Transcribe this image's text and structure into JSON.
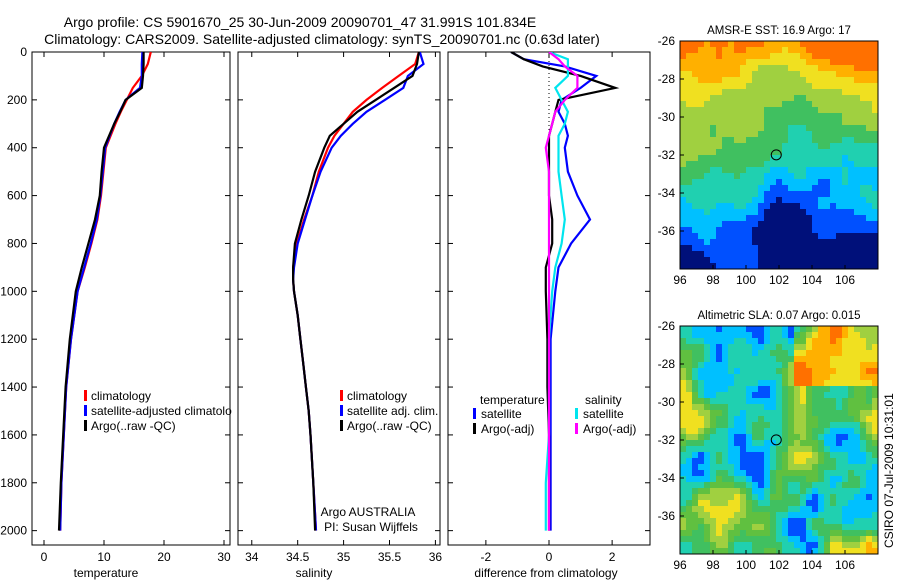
{
  "title": {
    "line1": "Argo profile: CS 5901670_25 30-Jun-2009 20090701_47 31.991S 101.834E",
    "line2": "Climatology: CARS2009. Satellite-adjusted climatology: synTS_20090701.nc (0.63d later)"
  },
  "side_label": "CSIRO 07-Jul-2009 10:31:01",
  "annotations": {
    "line1": "Argo AUSTRALIA",
    "line2": "PI: Susan Wijffels"
  },
  "colors": {
    "climatology": "#ff0000",
    "satellite": "#0000ff",
    "argo": "#000000",
    "sal_satellite": "#00e5ee",
    "sal_argo": "#ff00ff"
  },
  "chart_data": [
    {
      "type": "line",
      "xlabel": "temperature",
      "ylabel": "",
      "xlim": [
        -2,
        31
      ],
      "ylim": [
        2060,
        0
      ],
      "xticks": [
        0,
        10,
        20,
        30
      ],
      "yticks": [
        0,
        200,
        400,
        600,
        800,
        1000,
        1200,
        1400,
        1600,
        1800,
        2000
      ],
      "legend": [
        "climatology",
        "satellite-adjusted climatology",
        "Argo(..raw -QC)"
      ],
      "legend_shown": [
        "climatology",
        "satellite-adjusted climatolo",
        "Argo(..raw -QC)"
      ],
      "series": [
        {
          "name": "climatology",
          "depth": [
            0,
            50,
            100,
            150,
            200,
            250,
            300,
            400,
            500,
            600,
            700,
            800,
            900,
            1000,
            1200,
            1400,
            1600,
            1800,
            2000
          ],
          "values": [
            17.8,
            17.3,
            16.3,
            14.8,
            13.8,
            12.8,
            11.9,
            10.3,
            9.9,
            9.5,
            8.9,
            7.9,
            6.8,
            5.6,
            4.5,
            3.7,
            3.3,
            2.9,
            2.7
          ]
        },
        {
          "name": "satellite-adjusted climatology",
          "depth": [
            0,
            50,
            100,
            150,
            200,
            250,
            300,
            400,
            500,
            600,
            700,
            800,
            900,
            1000,
            1200,
            1400,
            1600,
            1800,
            2000
          ],
          "values": [
            16.4,
            16.3,
            16.3,
            16.0,
            13.6,
            12.6,
            11.7,
            10.2,
            9.8,
            9.4,
            8.8,
            7.8,
            6.7,
            5.6,
            4.5,
            3.7,
            3.3,
            2.9,
            2.7
          ]
        },
        {
          "name": "Argo(..raw -QC)",
          "depth": [
            0,
            50,
            100,
            150,
            200,
            250,
            300,
            400,
            500,
            600,
            700,
            800,
            900,
            1000,
            1200,
            1400,
            1600,
            1800,
            2000
          ],
          "values": [
            16.6,
            16.6,
            16.5,
            16.3,
            13.6,
            12.7,
            11.7,
            10.0,
            9.6,
            9.3,
            8.5,
            7.4,
            6.3,
            5.3,
            4.3,
            3.6,
            3.2,
            2.8,
            2.5
          ]
        }
      ]
    },
    {
      "type": "line",
      "xlabel": "salinity",
      "ylabel": "",
      "xlim": [
        33.85,
        36.05
      ],
      "ylim": [
        2060,
        0
      ],
      "xticks": [
        34,
        34.5,
        35,
        35.5,
        36
      ],
      "yticks": [
        0,
        200,
        400,
        600,
        800,
        1000,
        1200,
        1400,
        1600,
        1800,
        2000
      ],
      "legend": [
        "climatology",
        "satellite adj. clim.",
        "Argo(..raw -QC)"
      ],
      "series": [
        {
          "name": "climatology",
          "depth": [
            0,
            50,
            100,
            150,
            200,
            250,
            300,
            350,
            400,
            500,
            600,
            700,
            800,
            900,
            950,
            1000,
            1100,
            1200,
            1300,
            1400,
            1500,
            1600,
            1800,
            2000
          ],
          "values": [
            35.82,
            35.78,
            35.6,
            35.42,
            35.25,
            35.1,
            35.0,
            34.9,
            34.83,
            34.73,
            34.66,
            34.57,
            34.49,
            34.45,
            34.45,
            34.46,
            34.5,
            34.53,
            34.56,
            34.59,
            34.62,
            34.64,
            34.67,
            34.7
          ]
        },
        {
          "name": "satellite adj. clim.",
          "depth": [
            0,
            50,
            100,
            150,
            200,
            250,
            300,
            350,
            400,
            500,
            600,
            700,
            800,
            900,
            950,
            1000,
            1100,
            1200,
            1300,
            1400,
            1500,
            1600,
            1800,
            2000
          ],
          "values": [
            35.83,
            35.87,
            35.7,
            35.65,
            35.45,
            35.25,
            35.1,
            34.97,
            34.87,
            34.75,
            34.66,
            34.58,
            34.5,
            34.46,
            34.45,
            34.46,
            34.5,
            34.53,
            34.56,
            34.59,
            34.62,
            34.64,
            34.67,
            34.7
          ]
        },
        {
          "name": "Argo(..raw -QC)",
          "depth": [
            0,
            50,
            100,
            150,
            200,
            250,
            300,
            350,
            400,
            500,
            600,
            700,
            800,
            900,
            950,
            1000,
            1100,
            1200,
            1300,
            1400,
            1500,
            1600,
            1800,
            2000
          ],
          "values": [
            35.82,
            35.8,
            35.75,
            35.55,
            35.35,
            35.15,
            35.0,
            34.85,
            34.79,
            34.69,
            34.62,
            34.54,
            34.47,
            34.45,
            34.45,
            34.46,
            34.5,
            34.53,
            34.56,
            34.59,
            34.62,
            34.64,
            34.67,
            34.69
          ]
        }
      ]
    },
    {
      "type": "line",
      "xlabel": "difference from climatology",
      "ylabel": "",
      "xlim": [
        -3.2,
        3.2
      ],
      "ylim": [
        2060,
        0
      ],
      "xticks": [
        -2,
        0,
        2
      ],
      "yticks": [
        0,
        200,
        400,
        600,
        800,
        1000,
        1200,
        1400,
        1600,
        1800,
        2000
      ],
      "legend_headers": [
        "temperature",
        "salinity"
      ],
      "legend": [
        "satellite",
        "Argo(-adj)",
        "satellite",
        "Argo(-adj)"
      ],
      "series": [
        {
          "name": "temperature satellite",
          "depth": [
            0,
            30,
            60,
            100,
            150,
            200,
            250,
            300,
            350,
            400,
            500,
            600,
            700,
            800,
            900,
            1000,
            1200,
            1400,
            1600,
            1800,
            2000
          ],
          "values": [
            -1.2,
            -0.8,
            0.5,
            1.5,
            1.0,
            0.4,
            0.3,
            0.5,
            0.6,
            0.5,
            0.6,
            0.9,
            1.3,
            0.7,
            0.3,
            0.2,
            0.05,
            0.05,
            0.05,
            0.05,
            0.05
          ]
        },
        {
          "name": "temperature Argo(-adj)",
          "depth": [
            0,
            30,
            60,
            100,
            150,
            200,
            250,
            300,
            350,
            400,
            500,
            600,
            700,
            800,
            900,
            1000,
            1200,
            1400,
            1600,
            1800,
            2000
          ],
          "values": [
            -1.2,
            -0.8,
            -0.2,
            1.0,
            2.1,
            0.3,
            0.2,
            0.1,
            0.0,
            0.0,
            0.0,
            0.0,
            0.1,
            0.1,
            -0.1,
            -0.1,
            -0.05,
            -0.05,
            0.0,
            0.0,
            0.0
          ]
        },
        {
          "name": "salinity satellite",
          "depth": [
            0,
            30,
            60,
            100,
            150,
            200,
            250,
            300,
            350,
            400,
            500,
            600,
            700,
            800,
            900,
            1000,
            1200,
            1400,
            1600,
            1800,
            2000
          ],
          "values": [
            0.0,
            0.6,
            0.6,
            0.6,
            0.2,
            0.4,
            0.6,
            0.5,
            0.3,
            0.3,
            0.3,
            0.4,
            0.5,
            0.4,
            0.2,
            0.1,
            0.0,
            0.0,
            0.0,
            -0.1,
            -0.1
          ]
        },
        {
          "name": "salinity Argo(-adj)",
          "depth": [
            0,
            30,
            60,
            100,
            150,
            200,
            250,
            300,
            350,
            400,
            500,
            600,
            700,
            800,
            900,
            1000,
            1200,
            1400,
            1600,
            1800,
            2000
          ],
          "values": [
            0.0,
            0.3,
            0.5,
            0.9,
            0.9,
            0.5,
            0.2,
            0.1,
            0.0,
            -0.1,
            0.0,
            0.0,
            0.0,
            0.0,
            0.0,
            0.0,
            0.0,
            0.0,
            0.0,
            0.0,
            0.0
          ]
        }
      ]
    },
    {
      "type": "heatmap",
      "title": "AMSR-E SST: 16.9 Argo: 17",
      "xlim": [
        96,
        108
      ],
      "ylim": [
        -38,
        -26
      ],
      "xticks": [
        96,
        98,
        100,
        102,
        104,
        106
      ],
      "yticks": [
        -26,
        -28,
        -30,
        -32,
        -34,
        -36
      ],
      "marker": {
        "lon": 101.834,
        "lat": -31.991
      },
      "palette": [
        "#00107a",
        "#0050ff",
        "#00c0ff",
        "#20d0b0",
        "#40c060",
        "#a0d040",
        "#f0e020",
        "#ffb000",
        "#ff7000"
      ]
    },
    {
      "type": "heatmap",
      "title": "Altimetric SLA: 0.07 Argo: 0.015",
      "xlim": [
        96,
        108
      ],
      "ylim": [
        -38,
        -26
      ],
      "xticks": [
        96,
        98,
        100,
        102,
        104,
        106
      ],
      "yticks": [
        -26,
        -28,
        -30,
        -32,
        -34,
        -36
      ],
      "marker": {
        "lon": 101.834,
        "lat": -31.991
      },
      "palette": [
        "#0050ff",
        "#00c0ff",
        "#20d0b0",
        "#40c060",
        "#60c040",
        "#a0d040",
        "#f0e020",
        "#ffb000",
        "#ff7000"
      ]
    }
  ]
}
